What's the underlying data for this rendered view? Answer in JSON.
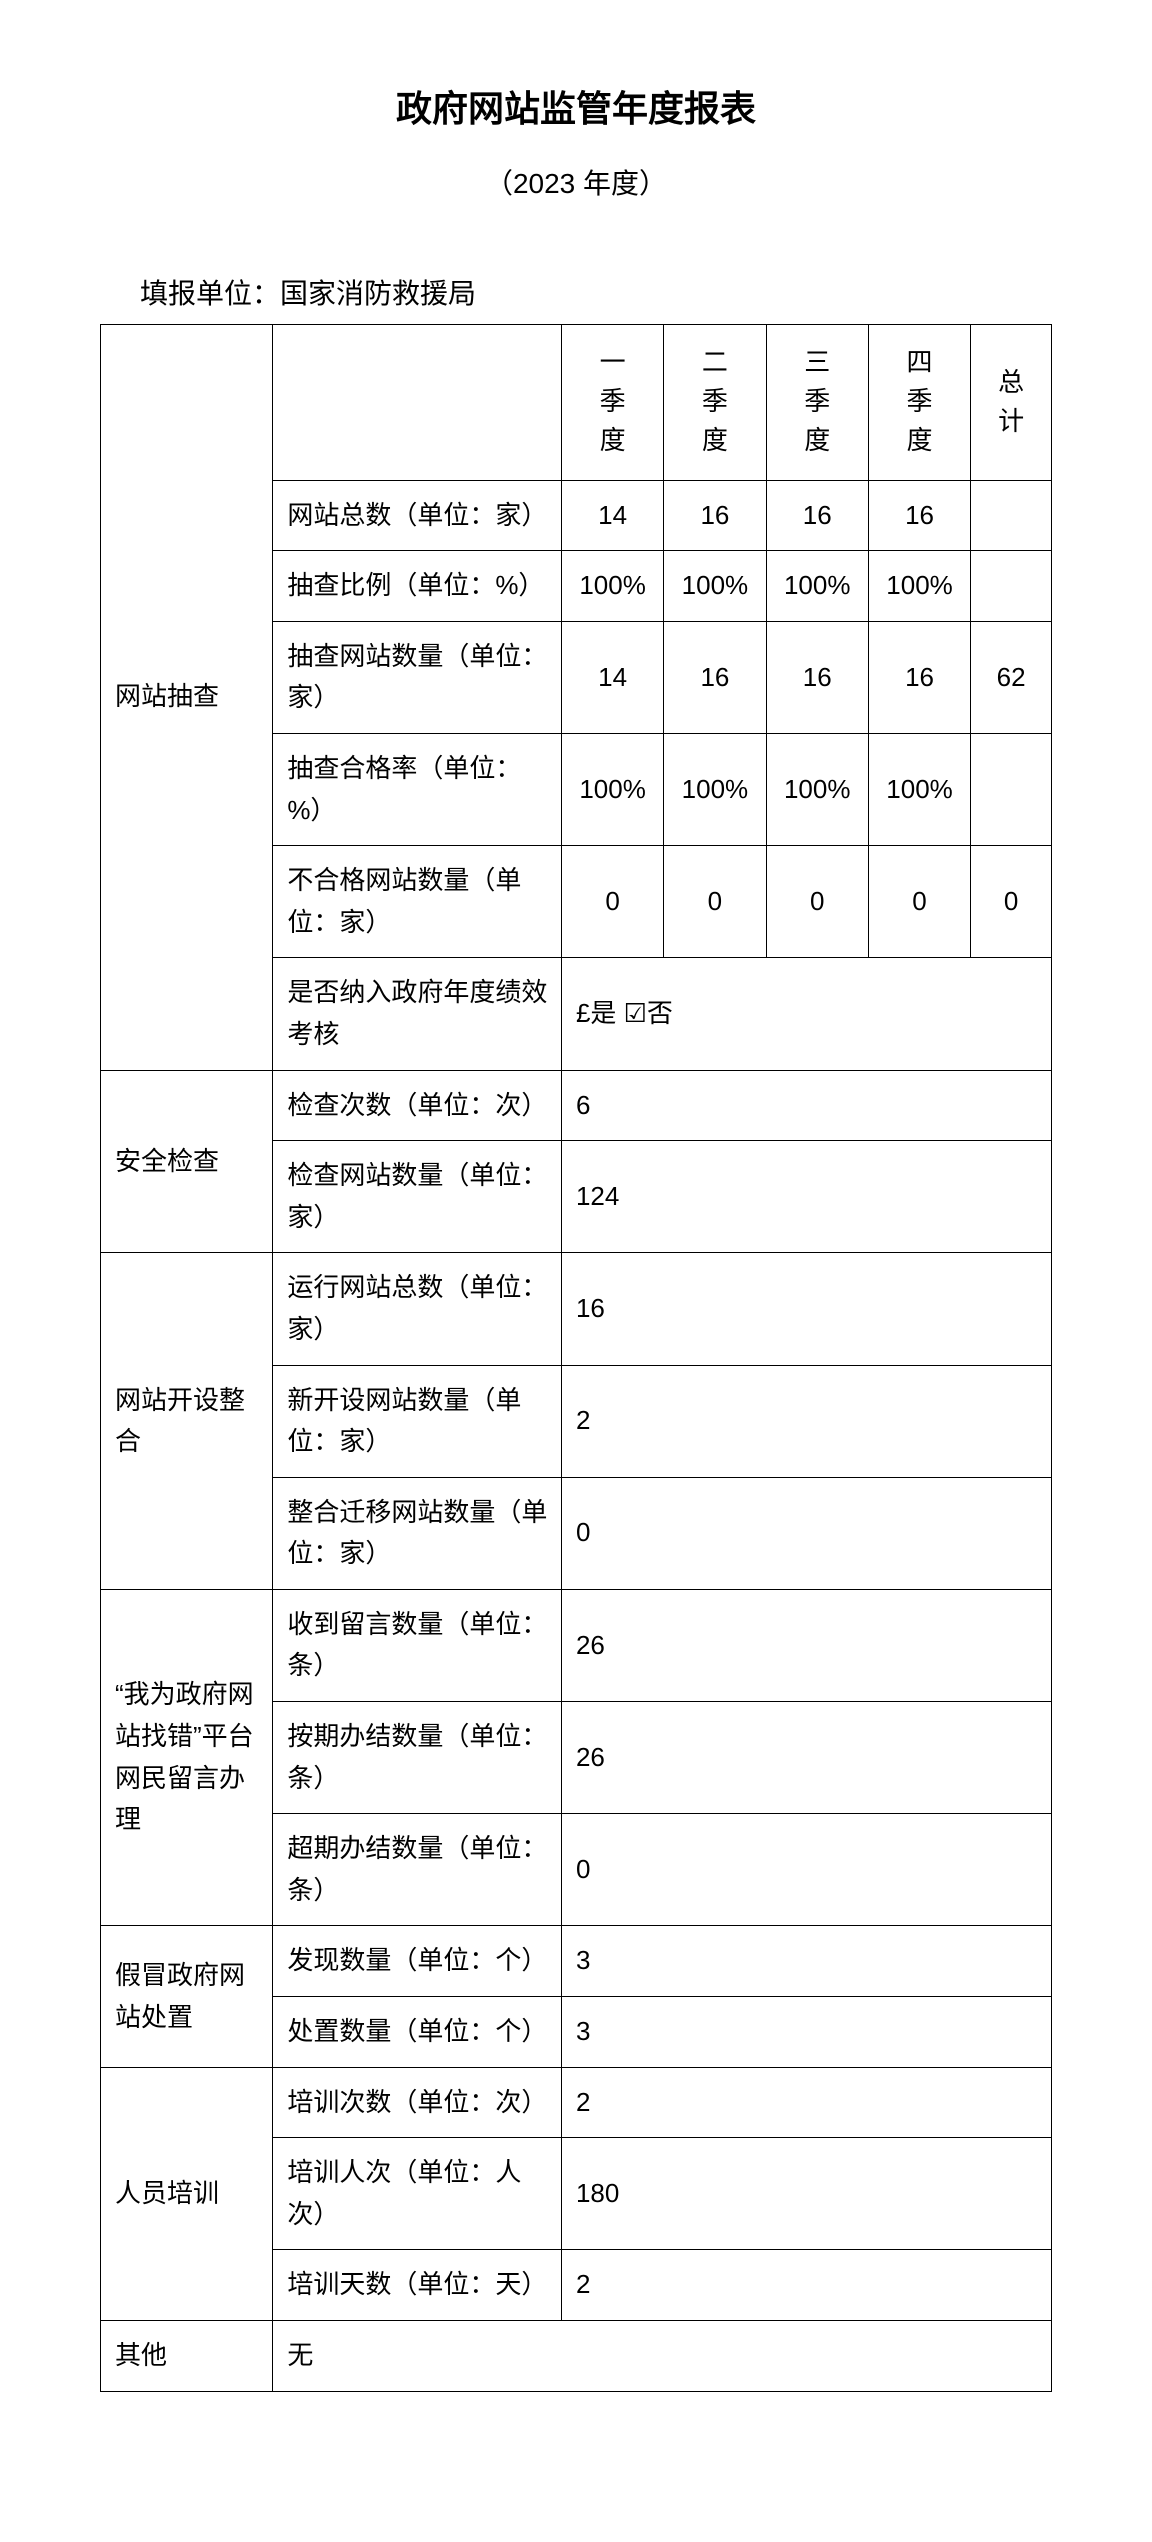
{
  "header": {
    "title": "政府网站监管年度报表",
    "subtitle": "（2023 年度）",
    "unit_label": "填报单位：",
    "unit_value": "国家消防救援局"
  },
  "columns": {
    "q1": "一季度",
    "q2": "二季度",
    "q3": "三季度",
    "q4": "四季度",
    "total": "总计"
  },
  "sections": {
    "check": {
      "label": "网站抽查",
      "rows": {
        "total_sites": {
          "label": "网站总数（单位：家）",
          "q1": "14",
          "q2": "16",
          "q3": "16",
          "q4": "16",
          "total": ""
        },
        "ratio": {
          "label": "抽查比例（单位：%）",
          "q1": "100%",
          "q2": "100%",
          "q3": "100%",
          "q4": "100%",
          "total": ""
        },
        "sample_count": {
          "label": "抽查网站数量（单位：家）",
          "q1": "14",
          "q2": "16",
          "q3": "16",
          "q4": "16",
          "total": "62"
        },
        "pass_rate": {
          "label": "抽查合格率（单位：%）",
          "q1": "100%",
          "q2": "100%",
          "q3": "100%",
          "q4": "100%",
          "total": ""
        },
        "fail_count": {
          "label": "不合格网站数量（单位：家）",
          "q1": "0",
          "q2": "0",
          "q3": "0",
          "q4": "0",
          "total": "0"
        },
        "perf": {
          "label": "是否纳入政府年度绩效考核",
          "value": "£是   ☑否"
        }
      }
    },
    "security": {
      "label": "安全检查",
      "rows": {
        "inspect_times": {
          "label": "检查次数（单位：次）",
          "value": "6"
        },
        "inspect_sites": {
          "label": "检查网站数量（单位：家）",
          "value": "124"
        }
      }
    },
    "setup": {
      "label": "网站开设整合",
      "rows": {
        "running": {
          "label": "运行网站总数（单位：家）",
          "value": "16"
        },
        "new": {
          "label": "新开设网站数量（单位：家）",
          "value": "2"
        },
        "merged": {
          "label": "整合迁移网站数量（单位：家）",
          "value": "0"
        }
      }
    },
    "feedback": {
      "label": "“我为政府网站找错”平台网民留言办理",
      "rows": {
        "received": {
          "label": "收到留言数量（单位：条）",
          "value": "26"
        },
        "ontime": {
          "label": "按期办结数量（单位：条）",
          "value": "26"
        },
        "overdue": {
          "label": "超期办结数量（单位：条）",
          "value": "0"
        }
      }
    },
    "fake": {
      "label": "假冒政府网站处置",
      "rows": {
        "found": {
          "label": "发现数量（单位：个）",
          "value": "3"
        },
        "handled": {
          "label": "处置数量（单位：个）",
          "value": "3"
        }
      }
    },
    "training": {
      "label": "人员培训",
      "rows": {
        "times": {
          "label": "培训次数（单位：次）",
          "value": "2"
        },
        "persons": {
          "label": "培训人次（单位：人次）",
          "value": "180"
        },
        "days": {
          "label": "培训天数（单位：天）",
          "value": "2"
        }
      }
    },
    "other": {
      "label": "其他",
      "value": "无"
    }
  }
}
